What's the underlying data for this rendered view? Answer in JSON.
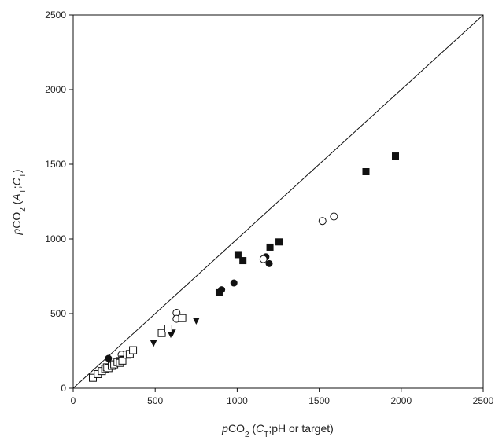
{
  "chart_data": {
    "type": "scatter",
    "title": "",
    "xlabel": {
      "italic": "p",
      "main": "CO",
      "sub": "2",
      "rest_open": " (",
      "ct_main": "C",
      "ct_sub": "T",
      "rest_close": ";pH or target)"
    },
    "ylabel": {
      "italic": "p",
      "main": "CO",
      "sub": "2",
      "rest_open": " (",
      "a_main": "A",
      "a_sub": "T",
      "sep": ";",
      "c_main": "C",
      "c_sub": "T",
      "close": ")"
    },
    "xlim": [
      0,
      2500
    ],
    "ylim": [
      0,
      2500
    ],
    "xticks": [
      "0",
      "500",
      "1000",
      "1500",
      "2000",
      "2500"
    ],
    "yticks": [
      "0",
      "500",
      "1000",
      "1500",
      "2000",
      "2500"
    ],
    "grid": false,
    "legend": "none",
    "reference_line": {
      "type": "1:1",
      "from": [
        0,
        0
      ],
      "to": [
        2500,
        2500
      ]
    },
    "series": [
      {
        "marker": "filled-square",
        "color": "#111111",
        "points": [
          [
            890,
            640
          ],
          [
            1005,
            895
          ],
          [
            1035,
            855
          ],
          [
            1200,
            945
          ],
          [
            1255,
            980
          ],
          [
            1785,
            1450
          ],
          [
            1965,
            1555
          ]
        ]
      },
      {
        "marker": "filled-circle",
        "color": "#111111",
        "points": [
          [
            215,
            200
          ],
          [
            290,
            190
          ],
          [
            905,
            660
          ],
          [
            980,
            705
          ],
          [
            1175,
            880
          ],
          [
            1195,
            835
          ]
        ]
      },
      {
        "marker": "open-circle",
        "color": "#111111",
        "points": [
          [
            295,
            225
          ],
          [
            630,
            505
          ],
          [
            630,
            465
          ],
          [
            1160,
            865
          ],
          [
            1520,
            1120
          ],
          [
            1590,
            1150
          ]
        ]
      },
      {
        "marker": "filled-triangle-down",
        "color": "#111111",
        "points": [
          [
            490,
            300
          ],
          [
            595,
            360
          ],
          [
            605,
            370
          ],
          [
            280,
            185
          ],
          [
            300,
            195
          ],
          [
            750,
            450
          ]
        ]
      },
      {
        "marker": "open-square",
        "color": "#111111",
        "points": [
          [
            120,
            70
          ],
          [
            150,
            95
          ],
          [
            175,
            115
          ],
          [
            195,
            130
          ],
          [
            205,
            140
          ],
          [
            215,
            135
          ],
          [
            235,
            150
          ],
          [
            250,
            160
          ],
          [
            270,
            175
          ],
          [
            285,
            170
          ],
          [
            300,
            185
          ],
          [
            330,
            225
          ],
          [
            345,
            230
          ],
          [
            365,
            255
          ],
          [
            540,
            370
          ],
          [
            580,
            400
          ],
          [
            665,
            470
          ]
        ]
      }
    ]
  }
}
